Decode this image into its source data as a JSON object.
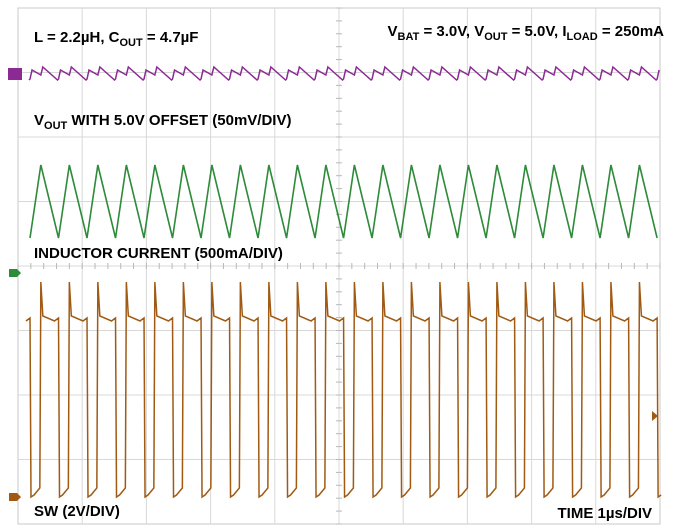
{
  "chart_data": {
    "type": "line",
    "title": "",
    "annotations": {
      "conditions_left": {
        "a": "L = 2.2µH, C",
        "a_sub": "OUT",
        "b": " = 4.7µF"
      },
      "conditions_right": {
        "a": "V",
        "a_sub": "BAT",
        "b": " = 3.0V, V",
        "b_sub": "OUT",
        "c": " = 5.0V, I",
        "c_sub": "LOAD",
        "d": " = 250mA"
      },
      "vout_label": {
        "a": "V",
        "a_sub": "OUT",
        "b": " WITH 5.0V OFFSET (50mV/DIV)"
      },
      "inductor_label": "INDUCTOR CURRENT (500mA/DIV)",
      "sw_label": "SW (2V/DIV)",
      "time_label": "TIME 1µs/DIV"
    },
    "x_axis": {
      "unit": "µs",
      "per_div": 1,
      "divisions": 10,
      "range": [
        0,
        10
      ]
    },
    "switching_period_us": 0.444,
    "series": [
      {
        "name": "VOUT",
        "color": "#8b2a93",
        "scale_per_div": "50mV",
        "offset": "5.0V",
        "ripple_mV_pk_pk": 20,
        "waveform": "sawtooth"
      },
      {
        "name": "INDUCTOR CURRENT",
        "color": "#2e8b3a",
        "scale_per_div": "500mA",
        "valley_mA": 100,
        "peak_mA": 1120,
        "waveform": "triangle"
      },
      {
        "name": "SW",
        "color": "#a05a14",
        "scale_per_div": "2V",
        "high_V": 5.0,
        "low_V": 0.0,
        "duty_cycle": 0.38,
        "waveform": "square"
      }
    ],
    "grid": true,
    "colors": {
      "grid": "#d8d8d8",
      "frame": "#c8c8c8",
      "background": "#ffffff"
    }
  }
}
